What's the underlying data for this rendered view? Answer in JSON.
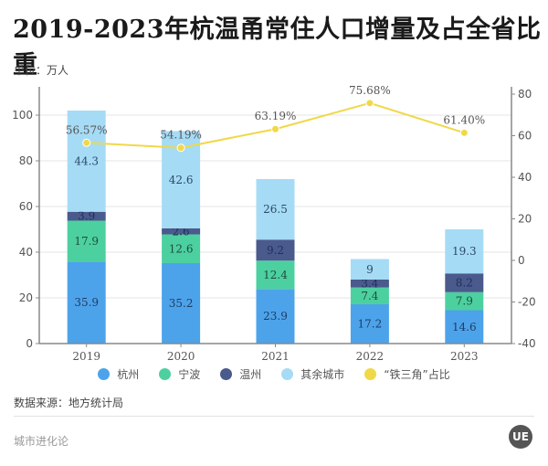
{
  "title": "2019-2023年杭温甬常住人口增量及占全省比重",
  "unit_label": "单位：万人",
  "source": "数据来源：地方统计局",
  "brand": "城市进化论",
  "logo_text": "UE",
  "chart_data": {
    "type": "bar",
    "stacked": true,
    "title": "2019-2023年杭温甬常住人口增量及占全省比重",
    "categories": [
      "2019",
      "2020",
      "2021",
      "2022",
      "2023"
    ],
    "series": [
      {
        "name": "杭州",
        "color": "#4da3ea",
        "values": [
          35.9,
          35.2,
          23.9,
          17.2,
          14.6
        ]
      },
      {
        "name": "宁波",
        "color": "#4dd0a0",
        "values": [
          17.9,
          12.6,
          12.4,
          7.4,
          7.9
        ]
      },
      {
        "name": "温州",
        "color": "#4a5a8c",
        "values": [
          3.9,
          2.6,
          9.2,
          3.4,
          8.2
        ]
      },
      {
        "name": "其余城市",
        "color": "#a6dbf5",
        "values": [
          44.3,
          42.6,
          26.5,
          9,
          19.3
        ]
      }
    ],
    "line_series": {
      "name": "“铁三角”占比",
      "color": "#f0d848",
      "axis": "right",
      "values": [
        56.57,
        54.19,
        63.19,
        75.68,
        61.4
      ],
      "labels": [
        "56.57%",
        "54.19%",
        "63.19%",
        "75.68%",
        "61.40%"
      ]
    },
    "left_axis": {
      "ylim": [
        0,
        110
      ],
      "ticks": [
        0,
        20,
        40,
        60,
        80,
        100
      ]
    },
    "right_axis": {
      "ylim": [
        -40,
        84
      ],
      "ticks": [
        -40,
        -20,
        0,
        20,
        40,
        60,
        80
      ]
    },
    "grid": true,
    "legend": "bottom",
    "legend_entries": [
      "杭州",
      "宁波",
      "温州",
      "其余城市",
      "“铁三角”占比"
    ]
  }
}
